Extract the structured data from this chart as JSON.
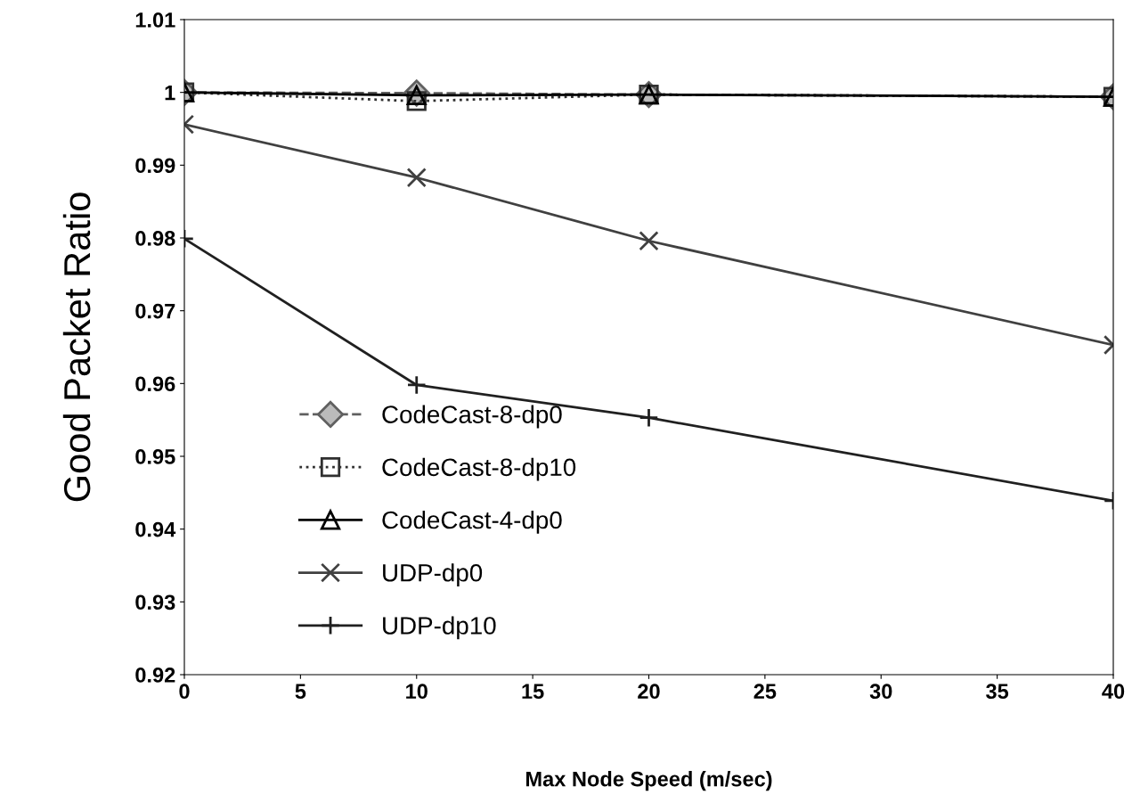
{
  "chart_data": {
    "type": "line",
    "xlabel": "Max Node Speed (m/sec)",
    "ylabel": "Good Packet Ratio",
    "x": [
      0,
      10,
      20,
      40
    ],
    "series": [
      {
        "name": "CodeCast-8-dp0",
        "color": "#606060",
        "values": [
          1.0,
          0.9999,
          0.9997,
          0.9994
        ],
        "marker": "diamond",
        "line_style": "dashed"
      },
      {
        "name": "CodeCast-8-dp10",
        "color": "#303030",
        "values": [
          1.0,
          0.9988,
          0.9997,
          0.9994
        ],
        "marker": "square",
        "line_style": "dotted"
      },
      {
        "name": "CodeCast-4-dp0",
        "color": "#000000",
        "values": [
          1.0,
          0.9996,
          0.9997,
          0.9994
        ],
        "marker": "triangle",
        "line_style": "solid"
      },
      {
        "name": "UDP-dp0",
        "color": "#404040",
        "values": [
          0.9956,
          0.9883,
          0.9796,
          0.9653
        ],
        "marker": "cross",
        "line_style": "solid"
      },
      {
        "name": "UDP-dp10",
        "color": "#202020",
        "values": [
          0.9799,
          0.9598,
          0.9553,
          0.9439
        ],
        "marker": "plus",
        "line_style": "solid"
      }
    ],
    "xlim": [
      0,
      40
    ],
    "xticks": [
      0,
      5,
      10,
      15,
      20,
      25,
      30,
      35,
      40
    ],
    "ylim": [
      0.92,
      1.01
    ],
    "yticks": [
      {
        "value": 0.92,
        "label": "0.92"
      },
      {
        "value": 0.93,
        "label": "0.93"
      },
      {
        "value": 0.94,
        "label": "0.94"
      },
      {
        "value": 0.95,
        "label": "0.95"
      },
      {
        "value": 0.96,
        "label": "0.96"
      },
      {
        "value": 0.97,
        "label": "0.97"
      },
      {
        "value": 0.98,
        "label": "0.98"
      },
      {
        "value": 0.99,
        "label": "0.99"
      },
      {
        "value": 1.0,
        "label": "1"
      },
      {
        "value": 1.01,
        "label": "1.01"
      }
    ],
    "grid": false,
    "legend": "bottom left"
  }
}
